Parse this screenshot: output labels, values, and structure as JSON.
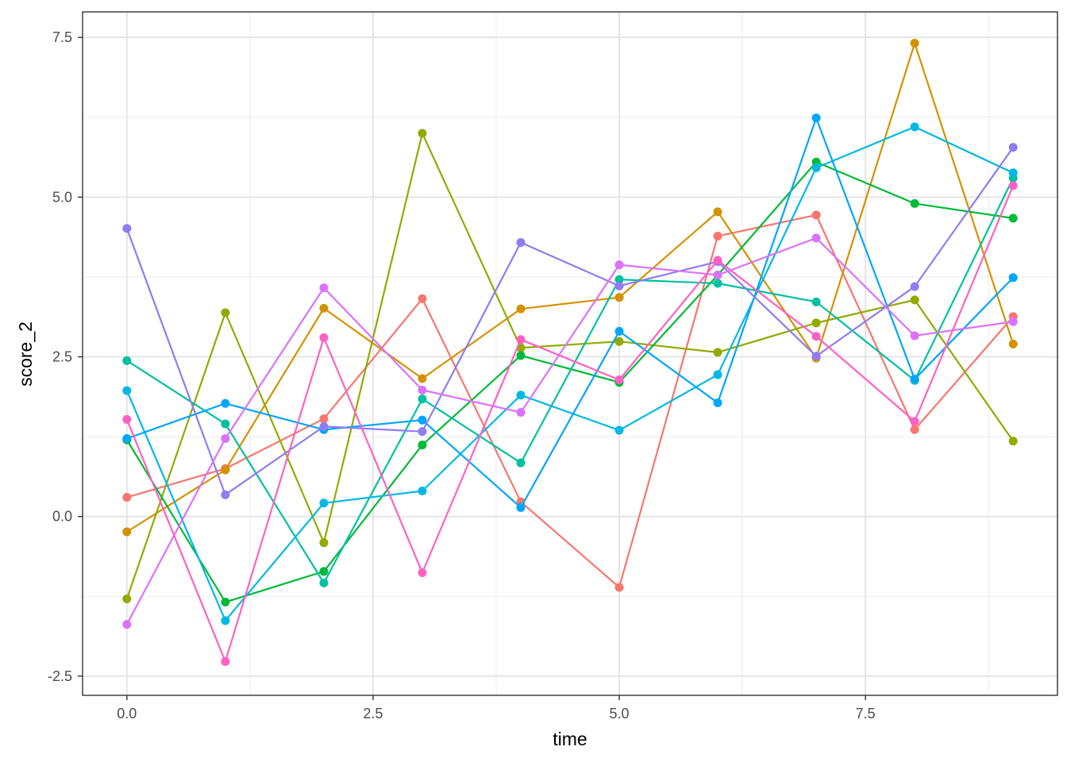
{
  "chart_data": {
    "type": "line",
    "xlabel": "time",
    "ylabel": "score_2",
    "xlim": [
      -0.45,
      9.45
    ],
    "ylim": [
      -2.8,
      7.9
    ],
    "x_ticks": [
      0.0,
      2.5,
      5.0,
      7.5
    ],
    "x_tick_labels": [
      "0.0",
      "2.5",
      "5.0",
      "7.5"
    ],
    "y_ticks": [
      -2.5,
      0.0,
      2.5,
      5.0,
      7.5
    ],
    "y_tick_labels": [
      "-2.5",
      "0.0",
      "2.5",
      "5.0",
      "7.5"
    ],
    "grid": true,
    "legend": "none",
    "x": [
      0,
      1,
      2,
      3,
      4,
      5,
      6,
      7,
      8,
      9
    ],
    "series": [
      {
        "color": "#F8766D",
        "values": [
          0.3,
          0.75,
          1.53,
          3.41,
          0.23,
          -1.11,
          4.39,
          4.72,
          1.36,
          3.13
        ]
      },
      {
        "color": "#D39200",
        "values": [
          -0.24,
          0.73,
          3.26,
          2.16,
          3.25,
          3.43,
          4.77,
          2.48,
          7.41,
          2.7
        ]
      },
      {
        "color": "#93AA00",
        "values": [
          -1.29,
          3.19,
          -0.41,
          6.0,
          2.64,
          2.74,
          2.57,
          3.03,
          3.39,
          1.18
        ]
      },
      {
        "color": "#00BA38",
        "values": [
          1.2,
          -1.34,
          -0.86,
          1.12,
          2.52,
          2.1,
          3.78,
          5.55,
          4.9,
          4.67
        ]
      },
      {
        "color": "#00C19F",
        "values": [
          2.44,
          1.45,
          -1.04,
          1.84,
          0.84,
          3.71,
          3.65,
          3.36,
          2.13,
          5.3
        ]
      },
      {
        "color": "#00B9E3",
        "values": [
          1.97,
          -1.63,
          0.21,
          0.4,
          1.9,
          1.35,
          2.22,
          5.46,
          6.1,
          5.38
        ]
      },
      {
        "color": "#00A5FF",
        "values": [
          1.22,
          1.77,
          1.36,
          1.51,
          0.14,
          2.9,
          1.78,
          6.24,
          2.15,
          3.74
        ]
      },
      {
        "color": "#8F7CF2",
        "values": [
          4.51,
          0.34,
          1.41,
          1.33,
          4.29,
          3.61,
          3.99,
          2.51,
          3.6,
          5.78
        ]
      },
      {
        "color": "#DB72FB",
        "values": [
          -1.69,
          1.22,
          3.58,
          1.98,
          1.63,
          3.94,
          3.78,
          4.36,
          2.83,
          3.05
        ]
      },
      {
        "color": "#FF61C3",
        "values": [
          1.52,
          -2.27,
          2.8,
          -0.88,
          2.77,
          2.14,
          4.01,
          2.82,
          1.49,
          5.18
        ]
      }
    ]
  }
}
